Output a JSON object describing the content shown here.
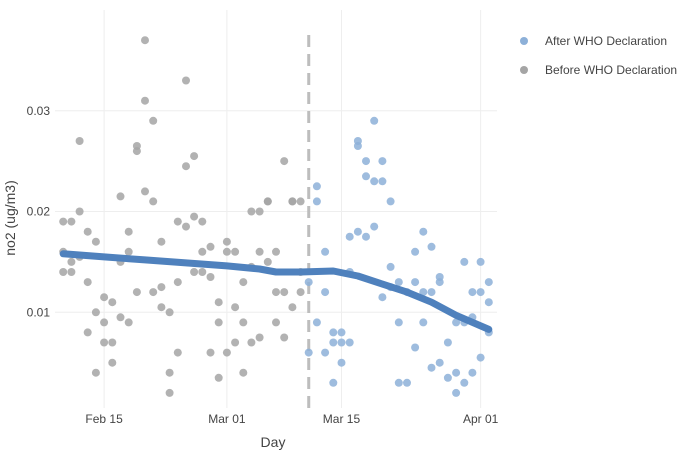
{
  "chart_data": {
    "type": "scatter",
    "xlabel": "Day",
    "ylabel": "no2 (ug/m3)",
    "x_range": [
      "2020-02-09",
      "2020-04-03"
    ],
    "y_range": [
      0.0005,
      0.04
    ],
    "x_ticks": [
      {
        "date": "2020-02-15",
        "label": "Feb 15"
      },
      {
        "date": "2020-03-01",
        "label": "Mar 01"
      },
      {
        "date": "2020-03-15",
        "label": "Mar 15"
      },
      {
        "date": "2020-04-01",
        "label": "Apr 01"
      }
    ],
    "y_ticks": [
      {
        "value": 0.01,
        "label": "0.01"
      },
      {
        "value": 0.02,
        "label": "0.02"
      },
      {
        "value": 0.03,
        "label": "0.03"
      }
    ],
    "grid": true,
    "legend_position": "top-right",
    "vline": {
      "date": "2020-03-11",
      "color": "#bdbdbd"
    },
    "series": [
      {
        "name": "After WHO Declaration",
        "color": "#8db0d8",
        "points": [
          [
            "2020-03-11",
            0.013
          ],
          [
            "2020-03-11",
            0.006
          ],
          [
            "2020-03-12",
            0.0225
          ],
          [
            "2020-03-12",
            0.021
          ],
          [
            "2020-03-12",
            0.009
          ],
          [
            "2020-03-13",
            0.016
          ],
          [
            "2020-03-13",
            0.012
          ],
          [
            "2020-03-13",
            0.006
          ],
          [
            "2020-03-14",
            0.008
          ],
          [
            "2020-03-14",
            0.007
          ],
          [
            "2020-03-14",
            0.003
          ],
          [
            "2020-03-15",
            0.008
          ],
          [
            "2020-03-15",
            0.007
          ],
          [
            "2020-03-15",
            0.005
          ],
          [
            "2020-03-16",
            0.0175
          ],
          [
            "2020-03-16",
            0.014
          ],
          [
            "2020-03-16",
            0.007
          ],
          [
            "2020-03-17",
            0.027
          ],
          [
            "2020-03-17",
            0.0265
          ],
          [
            "2020-03-17",
            0.018
          ],
          [
            "2020-03-18",
            0.025
          ],
          [
            "2020-03-18",
            0.0235
          ],
          [
            "2020-03-18",
            0.0175
          ],
          [
            "2020-03-19",
            0.029
          ],
          [
            "2020-03-19",
            0.023
          ],
          [
            "2020-03-19",
            0.0185
          ],
          [
            "2020-03-20",
            0.025
          ],
          [
            "2020-03-20",
            0.023
          ],
          [
            "2020-03-20",
            0.0115
          ],
          [
            "2020-03-21",
            0.021
          ],
          [
            "2020-03-21",
            0.0145
          ],
          [
            "2020-03-21",
            0.0125
          ],
          [
            "2020-03-22",
            0.013
          ],
          [
            "2020-03-22",
            0.009
          ],
          [
            "2020-03-22",
            0.003
          ],
          [
            "2020-03-23",
            0.012
          ],
          [
            "2020-03-23",
            0.003
          ],
          [
            "2020-03-24",
            0.016
          ],
          [
            "2020-03-24",
            0.013
          ],
          [
            "2020-03-24",
            0.0065
          ],
          [
            "2020-03-25",
            0.018
          ],
          [
            "2020-03-25",
            0.012
          ],
          [
            "2020-03-25",
            0.009
          ],
          [
            "2020-03-26",
            0.0165
          ],
          [
            "2020-03-26",
            0.012
          ],
          [
            "2020-03-26",
            0.0045
          ],
          [
            "2020-03-27",
            0.0135
          ],
          [
            "2020-03-27",
            0.013
          ],
          [
            "2020-03-27",
            0.005
          ],
          [
            "2020-03-28",
            0.007
          ],
          [
            "2020-03-28",
            0.0035
          ],
          [
            "2020-03-29",
            0.009
          ],
          [
            "2020-03-29",
            0.004
          ],
          [
            "2020-03-29",
            0.002
          ],
          [
            "2020-03-30",
            0.015
          ],
          [
            "2020-03-30",
            0.009
          ],
          [
            "2020-03-30",
            0.003
          ],
          [
            "2020-03-31",
            0.012
          ],
          [
            "2020-03-31",
            0.0095
          ],
          [
            "2020-03-31",
            0.004
          ],
          [
            "2020-04-01",
            0.015
          ],
          [
            "2020-04-01",
            0.012
          ],
          [
            "2020-04-01",
            0.0055
          ],
          [
            "2020-04-02",
            0.013
          ],
          [
            "2020-04-02",
            0.011
          ],
          [
            "2020-04-02",
            0.008
          ]
        ]
      },
      {
        "name": "Before WHO Declaration",
        "color": "#a5a5a5",
        "points": [
          [
            "2020-02-10",
            0.019
          ],
          [
            "2020-02-10",
            0.016
          ],
          [
            "2020-02-10",
            0.014
          ],
          [
            "2020-02-11",
            0.019
          ],
          [
            "2020-02-11",
            0.015
          ],
          [
            "2020-02-11",
            0.014
          ],
          [
            "2020-02-12",
            0.027
          ],
          [
            "2020-02-12",
            0.02
          ],
          [
            "2020-02-12",
            0.0155
          ],
          [
            "2020-02-13",
            0.018
          ],
          [
            "2020-02-13",
            0.013
          ],
          [
            "2020-02-13",
            0.008
          ],
          [
            "2020-02-14",
            0.017
          ],
          [
            "2020-02-14",
            0.01
          ],
          [
            "2020-02-14",
            0.004
          ],
          [
            "2020-02-15",
            0.0115
          ],
          [
            "2020-02-15",
            0.009
          ],
          [
            "2020-02-15",
            0.007
          ],
          [
            "2020-02-16",
            0.011
          ],
          [
            "2020-02-16",
            0.007
          ],
          [
            "2020-02-16",
            0.005
          ],
          [
            "2020-02-17",
            0.0215
          ],
          [
            "2020-02-17",
            0.015
          ],
          [
            "2020-02-17",
            0.0095
          ],
          [
            "2020-02-18",
            0.018
          ],
          [
            "2020-02-18",
            0.016
          ],
          [
            "2020-02-18",
            0.009
          ],
          [
            "2020-02-19",
            0.0265
          ],
          [
            "2020-02-19",
            0.026
          ],
          [
            "2020-02-19",
            0.012
          ],
          [
            "2020-02-20",
            0.037
          ],
          [
            "2020-02-20",
            0.031
          ],
          [
            "2020-02-20",
            0.022
          ],
          [
            "2020-02-21",
            0.029
          ],
          [
            "2020-02-21",
            0.021
          ],
          [
            "2020-02-21",
            0.012
          ],
          [
            "2020-02-22",
            0.017
          ],
          [
            "2020-02-22",
            0.0125
          ],
          [
            "2020-02-22",
            0.0105
          ],
          [
            "2020-02-23",
            0.01
          ],
          [
            "2020-02-23",
            0.004
          ],
          [
            "2020-02-23",
            0.002
          ],
          [
            "2020-02-24",
            0.019
          ],
          [
            "2020-02-24",
            0.013
          ],
          [
            "2020-02-24",
            0.006
          ],
          [
            "2020-02-25",
            0.033
          ],
          [
            "2020-02-25",
            0.0245
          ],
          [
            "2020-02-25",
            0.0185
          ],
          [
            "2020-02-26",
            0.0255
          ],
          [
            "2020-02-26",
            0.0195
          ],
          [
            "2020-02-26",
            0.014
          ],
          [
            "2020-02-27",
            0.019
          ],
          [
            "2020-02-27",
            0.016
          ],
          [
            "2020-02-27",
            0.014
          ],
          [
            "2020-02-28",
            0.0165
          ],
          [
            "2020-02-28",
            0.0135
          ],
          [
            "2020-02-28",
            0.006
          ],
          [
            "2020-02-29",
            0.011
          ],
          [
            "2020-02-29",
            0.009
          ],
          [
            "2020-02-29",
            0.0035
          ],
          [
            "2020-03-01",
            0.017
          ],
          [
            "2020-03-01",
            0.016
          ],
          [
            "2020-03-01",
            0.006
          ],
          [
            "2020-03-02",
            0.016
          ],
          [
            "2020-03-02",
            0.0105
          ],
          [
            "2020-03-02",
            0.007
          ],
          [
            "2020-03-03",
            0.013
          ],
          [
            "2020-03-03",
            0.009
          ],
          [
            "2020-03-03",
            0.004
          ],
          [
            "2020-03-04",
            0.02
          ],
          [
            "2020-03-04",
            0.0145
          ],
          [
            "2020-03-04",
            0.007
          ],
          [
            "2020-03-05",
            0.02
          ],
          [
            "2020-03-05",
            0.016
          ],
          [
            "2020-03-05",
            0.0075
          ],
          [
            "2020-03-06",
            0.021
          ],
          [
            "2020-03-06",
            0.015
          ],
          [
            "2020-03-06",
            0.021
          ],
          [
            "2020-03-07",
            0.016
          ],
          [
            "2020-03-07",
            0.012
          ],
          [
            "2020-03-07",
            0.009
          ],
          [
            "2020-03-08",
            0.025
          ],
          [
            "2020-03-08",
            0.012
          ],
          [
            "2020-03-08",
            0.0075
          ],
          [
            "2020-03-09",
            0.021
          ],
          [
            "2020-03-09",
            0.021
          ],
          [
            "2020-03-09",
            0.0105
          ],
          [
            "2020-03-10",
            0.021
          ],
          [
            "2020-03-10",
            0.014
          ],
          [
            "2020-03-10",
            0.012
          ]
        ]
      }
    ],
    "trend_line": {
      "color": "#4f81bd",
      "points": [
        [
          "2020-02-10",
          0.0158
        ],
        [
          "2020-02-15",
          0.0155
        ],
        [
          "2020-02-20",
          0.0152
        ],
        [
          "2020-02-25",
          0.0149
        ],
        [
          "2020-03-01",
          0.0146
        ],
        [
          "2020-03-05",
          0.0143
        ],
        [
          "2020-03-07",
          0.014
        ],
        [
          "2020-03-10",
          0.014
        ],
        [
          "2020-03-14",
          0.0141
        ],
        [
          "2020-03-17",
          0.0136
        ],
        [
          "2020-03-20",
          0.0128
        ],
        [
          "2020-03-23",
          0.012
        ],
        [
          "2020-03-26",
          0.011
        ],
        [
          "2020-03-29",
          0.0097
        ],
        [
          "2020-04-02",
          0.0083
        ]
      ]
    }
  }
}
